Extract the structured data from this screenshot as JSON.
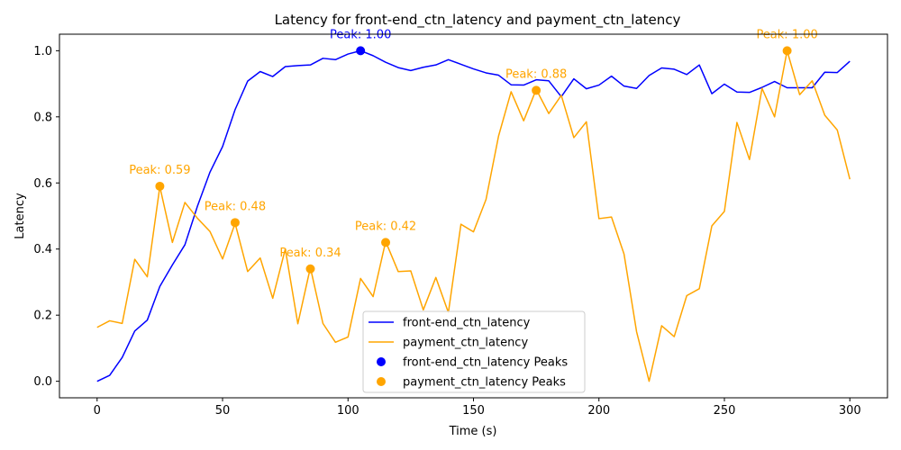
{
  "chart_data": {
    "type": "line",
    "title": "Latency for front-end_ctn_latency and payment_ctn_latency",
    "xlabel": "Time (s)",
    "ylabel": "Latency",
    "xlim": [
      -15,
      315
    ],
    "ylim": [
      -0.05,
      1.05
    ],
    "xticks": [
      0,
      50,
      100,
      150,
      200,
      250,
      300
    ],
    "yticks": [
      0.0,
      0.2,
      0.4,
      0.6,
      0.8,
      1.0
    ],
    "xtick_labels": [
      "0",
      "50",
      "100",
      "150",
      "200",
      "250",
      "300"
    ],
    "ytick_labels": [
      "0.0",
      "0.2",
      "0.4",
      "0.6",
      "0.8",
      "1.0"
    ],
    "grid": false,
    "legend_position": "bottom-center",
    "x": [
      0,
      5,
      10,
      15,
      20,
      25,
      30,
      35,
      40,
      45,
      50,
      55,
      60,
      65,
      70,
      75,
      80,
      85,
      90,
      95,
      100,
      105,
      110,
      115,
      120,
      125,
      130,
      135,
      140,
      145,
      150,
      155,
      160,
      165,
      170,
      175,
      180,
      185,
      190,
      195,
      200,
      205,
      210,
      215,
      220,
      225,
      230,
      235,
      240,
      245,
      250,
      255,
      260,
      265,
      270,
      275,
      280,
      285,
      290,
      295,
      300
    ],
    "series": [
      {
        "name": "front-end_ctn_latency",
        "color": "#0000ff",
        "values": [
          0.0,
          0.018,
          0.072,
          0.152,
          0.185,
          0.287,
          0.352,
          0.413,
          0.53,
          0.633,
          0.71,
          0.822,
          0.908,
          0.937,
          0.922,
          0.952,
          0.955,
          0.957,
          0.977,
          0.973,
          0.99,
          1.0,
          0.985,
          0.965,
          0.949,
          0.94,
          0.95,
          0.957,
          0.973,
          0.959,
          0.945,
          0.933,
          0.926,
          0.897,
          0.896,
          0.912,
          0.909,
          0.861,
          0.915,
          0.885,
          0.896,
          0.923,
          0.893,
          0.886,
          0.925,
          0.948,
          0.944,
          0.928,
          0.957,
          0.87,
          0.899,
          0.875,
          0.874,
          0.889,
          0.907,
          0.888,
          0.888,
          0.888,
          0.935,
          0.934,
          0.968
        ]
      },
      {
        "name": "payment_ctn_latency",
        "color": "#ffa500",
        "values": [
          0.163,
          0.183,
          0.175,
          0.369,
          0.316,
          0.589,
          0.42,
          0.541,
          0.493,
          0.453,
          0.37,
          0.478,
          0.332,
          0.373,
          0.251,
          0.4,
          0.174,
          0.344,
          0.175,
          0.118,
          0.134,
          0.311,
          0.256,
          0.423,
          0.332,
          0.334,
          0.216,
          0.314,
          0.208,
          0.475,
          0.452,
          0.55,
          0.742,
          0.876,
          0.788,
          0.883,
          0.81,
          0.865,
          0.737,
          0.785,
          0.492,
          0.497,
          0.385,
          0.15,
          0.0,
          0.168,
          0.135,
          0.259,
          0.28,
          0.47,
          0.514,
          0.783,
          0.671,
          0.886,
          0.8,
          1.0,
          0.867,
          0.909,
          0.805,
          0.76,
          0.611
        ]
      }
    ],
    "peaks": [
      {
        "series": "front-end_ctn_latency",
        "color": "#0000ff",
        "x": 105,
        "y": 1.0,
        "label": "Peak: 1.00"
      },
      {
        "series": "payment_ctn_latency",
        "color": "#ffa500",
        "x": 25,
        "y": 0.59,
        "label": "Peak: 0.59"
      },
      {
        "series": "payment_ctn_latency",
        "color": "#ffa500",
        "x": 55,
        "y": 0.48,
        "label": "Peak: 0.48"
      },
      {
        "series": "payment_ctn_latency",
        "color": "#ffa500",
        "x": 85,
        "y": 0.34,
        "label": "Peak: 0.34"
      },
      {
        "series": "payment_ctn_latency",
        "color": "#ffa500",
        "x": 115,
        "y": 0.42,
        "label": "Peak: 0.42"
      },
      {
        "series": "payment_ctn_latency",
        "color": "#ffa500",
        "x": 175,
        "y": 0.88,
        "label": "Peak: 0.88"
      },
      {
        "series": "payment_ctn_latency",
        "color": "#ffa500",
        "x": 275,
        "y": 1.0,
        "label": "Peak: 1.00"
      }
    ],
    "legend": [
      {
        "label": "front-end_ctn_latency",
        "kind": "line",
        "color": "#0000ff"
      },
      {
        "label": "payment_ctn_latency",
        "kind": "line",
        "color": "#ffa500"
      },
      {
        "label": "front-end_ctn_latency Peaks",
        "kind": "marker",
        "color": "#0000ff"
      },
      {
        "label": "payment_ctn_latency Peaks",
        "kind": "marker",
        "color": "#ffa500"
      }
    ]
  }
}
